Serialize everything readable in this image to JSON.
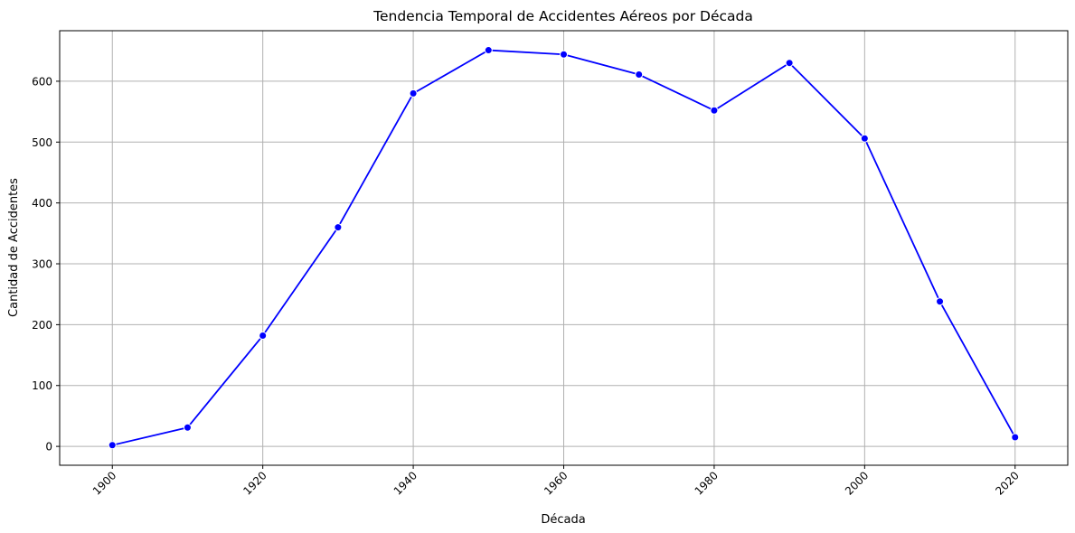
{
  "chart_data": {
    "type": "line",
    "title": "Tendencia Temporal de Accidentes Aéreos por Década",
    "xlabel": "Década",
    "ylabel": "Cantidad de Accidentes",
    "x": [
      1900,
      1910,
      1920,
      1930,
      1940,
      1950,
      1960,
      1970,
      1980,
      1990,
      2000,
      2010,
      2020
    ],
    "series": [
      {
        "values": [
          2,
          31,
          182,
          360,
          580,
          651,
          644,
          611,
          552,
          630,
          506,
          238,
          15
        ],
        "color": "#0000ff",
        "marker": "circle"
      }
    ],
    "xlim": [
      1893,
      2027
    ],
    "ylim": [
      -31,
      683
    ],
    "xticks": [
      1900,
      1920,
      1940,
      1960,
      1980,
      2000,
      2020
    ],
    "xtick_labels": [
      "1900",
      "1920",
      "1940",
      "1960",
      "1980",
      "2000",
      "2020"
    ],
    "xtick_rotation": 45,
    "yticks": [
      0,
      100,
      200,
      300,
      400,
      500,
      600
    ],
    "ytick_labels": [
      "0",
      "100",
      "200",
      "300",
      "400",
      "500",
      "600"
    ],
    "grid": true,
    "legend": "none"
  }
}
